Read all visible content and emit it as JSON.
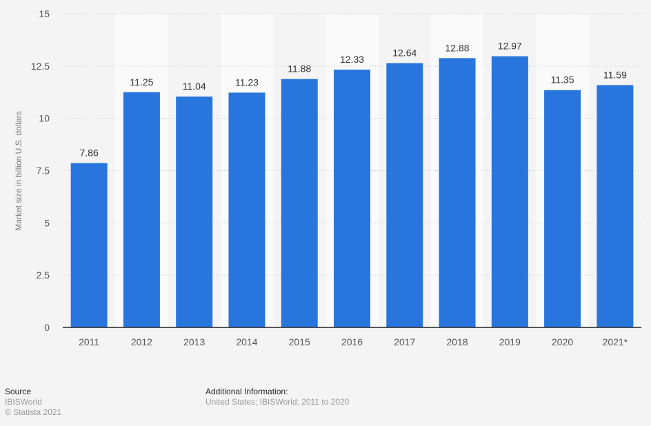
{
  "chart_data": {
    "type": "bar",
    "categories": [
      "2011",
      "2012",
      "2013",
      "2014",
      "2015",
      "2016",
      "2017",
      "2018",
      "2019",
      "2020",
      "2021*"
    ],
    "values": [
      7.86,
      11.25,
      11.04,
      11.23,
      11.88,
      12.33,
      12.64,
      12.88,
      12.97,
      11.35,
      11.59
    ],
    "title": "",
    "xlabel": "",
    "ylabel": "Market size in billion U.S. dollars",
    "ylim": [
      0,
      15
    ],
    "yticks": [
      "0",
      "2.5",
      "5",
      "7.5",
      "10",
      "12.5",
      "15"
    ],
    "grid": true,
    "bar_color": "#2876dd"
  },
  "footer": {
    "source_heading": "Source",
    "source": "IBISWorld",
    "copyright": "© Statista 2021",
    "info_heading": "Additional Information:",
    "info": "United States; IBISWorld; 2011 to 2020"
  }
}
